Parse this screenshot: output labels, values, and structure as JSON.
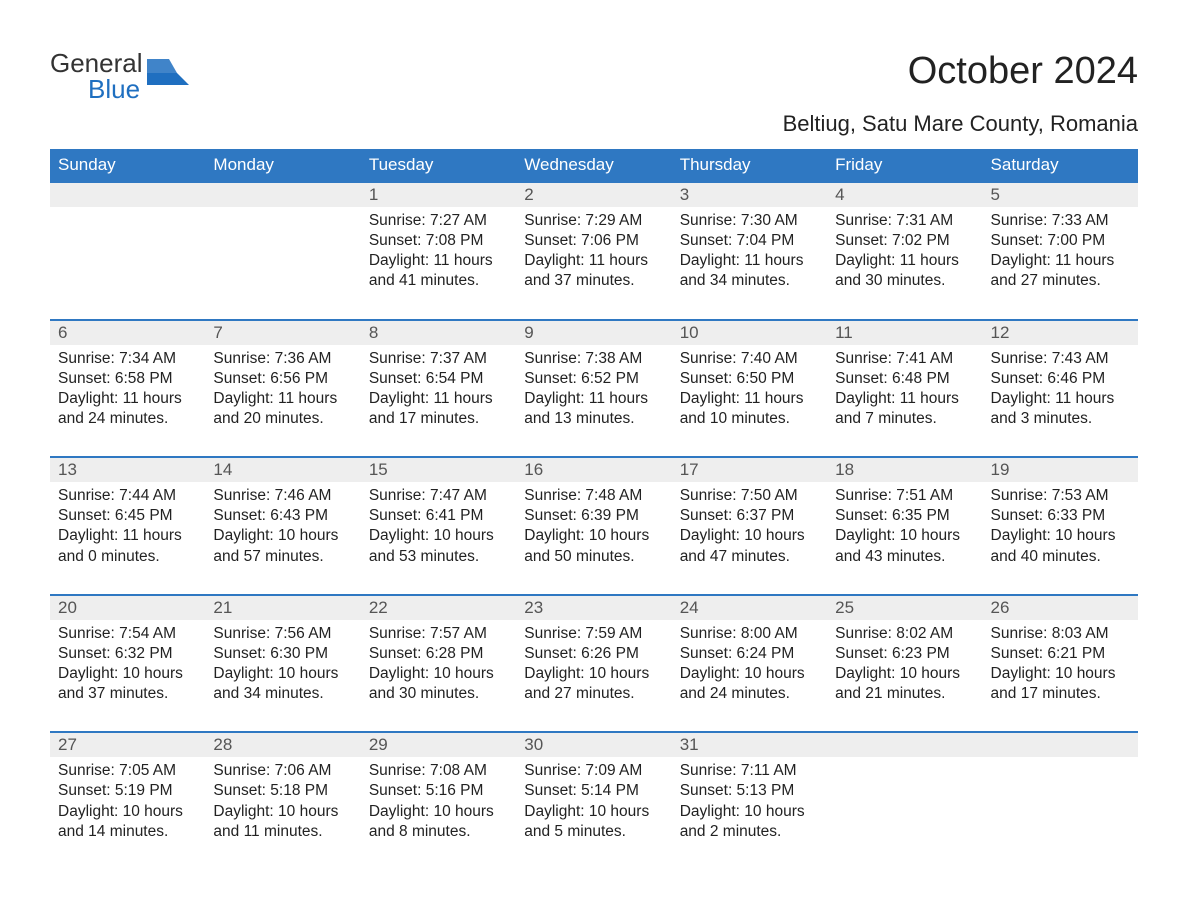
{
  "logo": {
    "word1": "General",
    "word2": "Blue",
    "text_color": "#333333",
    "blue_color": "#1f6fc0"
  },
  "title": "October 2024",
  "location": "Beltiug, Satu Mare County, Romania",
  "title_fontsize": 38,
  "location_fontsize": 22,
  "header_bg": "#2f78c2",
  "header_text_color": "#ffffff",
  "daynum_bg": "#eeeeee",
  "daynum_border": "#2f78c2",
  "body_text_color": "#222222",
  "page_bg": "#ffffff",
  "columns": [
    "Sunday",
    "Monday",
    "Tuesday",
    "Wednesday",
    "Thursday",
    "Friday",
    "Saturday"
  ],
  "weeks": [
    [
      null,
      null,
      {
        "n": "1",
        "sunrise": "7:27 AM",
        "sunset": "7:08 PM",
        "daylight": "11 hours and 41 minutes."
      },
      {
        "n": "2",
        "sunrise": "7:29 AM",
        "sunset": "7:06 PM",
        "daylight": "11 hours and 37 minutes."
      },
      {
        "n": "3",
        "sunrise": "7:30 AM",
        "sunset": "7:04 PM",
        "daylight": "11 hours and 34 minutes."
      },
      {
        "n": "4",
        "sunrise": "7:31 AM",
        "sunset": "7:02 PM",
        "daylight": "11 hours and 30 minutes."
      },
      {
        "n": "5",
        "sunrise": "7:33 AM",
        "sunset": "7:00 PM",
        "daylight": "11 hours and 27 minutes."
      }
    ],
    [
      {
        "n": "6",
        "sunrise": "7:34 AM",
        "sunset": "6:58 PM",
        "daylight": "11 hours and 24 minutes."
      },
      {
        "n": "7",
        "sunrise": "7:36 AM",
        "sunset": "6:56 PM",
        "daylight": "11 hours and 20 minutes."
      },
      {
        "n": "8",
        "sunrise": "7:37 AM",
        "sunset": "6:54 PM",
        "daylight": "11 hours and 17 minutes."
      },
      {
        "n": "9",
        "sunrise": "7:38 AM",
        "sunset": "6:52 PM",
        "daylight": "11 hours and 13 minutes."
      },
      {
        "n": "10",
        "sunrise": "7:40 AM",
        "sunset": "6:50 PM",
        "daylight": "11 hours and 10 minutes."
      },
      {
        "n": "11",
        "sunrise": "7:41 AM",
        "sunset": "6:48 PM",
        "daylight": "11 hours and 7 minutes."
      },
      {
        "n": "12",
        "sunrise": "7:43 AM",
        "sunset": "6:46 PM",
        "daylight": "11 hours and 3 minutes."
      }
    ],
    [
      {
        "n": "13",
        "sunrise": "7:44 AM",
        "sunset": "6:45 PM",
        "daylight": "11 hours and 0 minutes."
      },
      {
        "n": "14",
        "sunrise": "7:46 AM",
        "sunset": "6:43 PM",
        "daylight": "10 hours and 57 minutes."
      },
      {
        "n": "15",
        "sunrise": "7:47 AM",
        "sunset": "6:41 PM",
        "daylight": "10 hours and 53 minutes."
      },
      {
        "n": "16",
        "sunrise": "7:48 AM",
        "sunset": "6:39 PM",
        "daylight": "10 hours and 50 minutes."
      },
      {
        "n": "17",
        "sunrise": "7:50 AM",
        "sunset": "6:37 PM",
        "daylight": "10 hours and 47 minutes."
      },
      {
        "n": "18",
        "sunrise": "7:51 AM",
        "sunset": "6:35 PM",
        "daylight": "10 hours and 43 minutes."
      },
      {
        "n": "19",
        "sunrise": "7:53 AM",
        "sunset": "6:33 PM",
        "daylight": "10 hours and 40 minutes."
      }
    ],
    [
      {
        "n": "20",
        "sunrise": "7:54 AM",
        "sunset": "6:32 PM",
        "daylight": "10 hours and 37 minutes."
      },
      {
        "n": "21",
        "sunrise": "7:56 AM",
        "sunset": "6:30 PM",
        "daylight": "10 hours and 34 minutes."
      },
      {
        "n": "22",
        "sunrise": "7:57 AM",
        "sunset": "6:28 PM",
        "daylight": "10 hours and 30 minutes."
      },
      {
        "n": "23",
        "sunrise": "7:59 AM",
        "sunset": "6:26 PM",
        "daylight": "10 hours and 27 minutes."
      },
      {
        "n": "24",
        "sunrise": "8:00 AM",
        "sunset": "6:24 PM",
        "daylight": "10 hours and 24 minutes."
      },
      {
        "n": "25",
        "sunrise": "8:02 AM",
        "sunset": "6:23 PM",
        "daylight": "10 hours and 21 minutes."
      },
      {
        "n": "26",
        "sunrise": "8:03 AM",
        "sunset": "6:21 PM",
        "daylight": "10 hours and 17 minutes."
      }
    ],
    [
      {
        "n": "27",
        "sunrise": "7:05 AM",
        "sunset": "5:19 PM",
        "daylight": "10 hours and 14 minutes."
      },
      {
        "n": "28",
        "sunrise": "7:06 AM",
        "sunset": "5:18 PM",
        "daylight": "10 hours and 11 minutes."
      },
      {
        "n": "29",
        "sunrise": "7:08 AM",
        "sunset": "5:16 PM",
        "daylight": "10 hours and 8 minutes."
      },
      {
        "n": "30",
        "sunrise": "7:09 AM",
        "sunset": "5:14 PM",
        "daylight": "10 hours and 5 minutes."
      },
      {
        "n": "31",
        "sunrise": "7:11 AM",
        "sunset": "5:13 PM",
        "daylight": "10 hours and 2 minutes."
      },
      null,
      null
    ]
  ],
  "labels": {
    "sunrise": "Sunrise: ",
    "sunset": "Sunset: ",
    "daylight": "Daylight: "
  }
}
